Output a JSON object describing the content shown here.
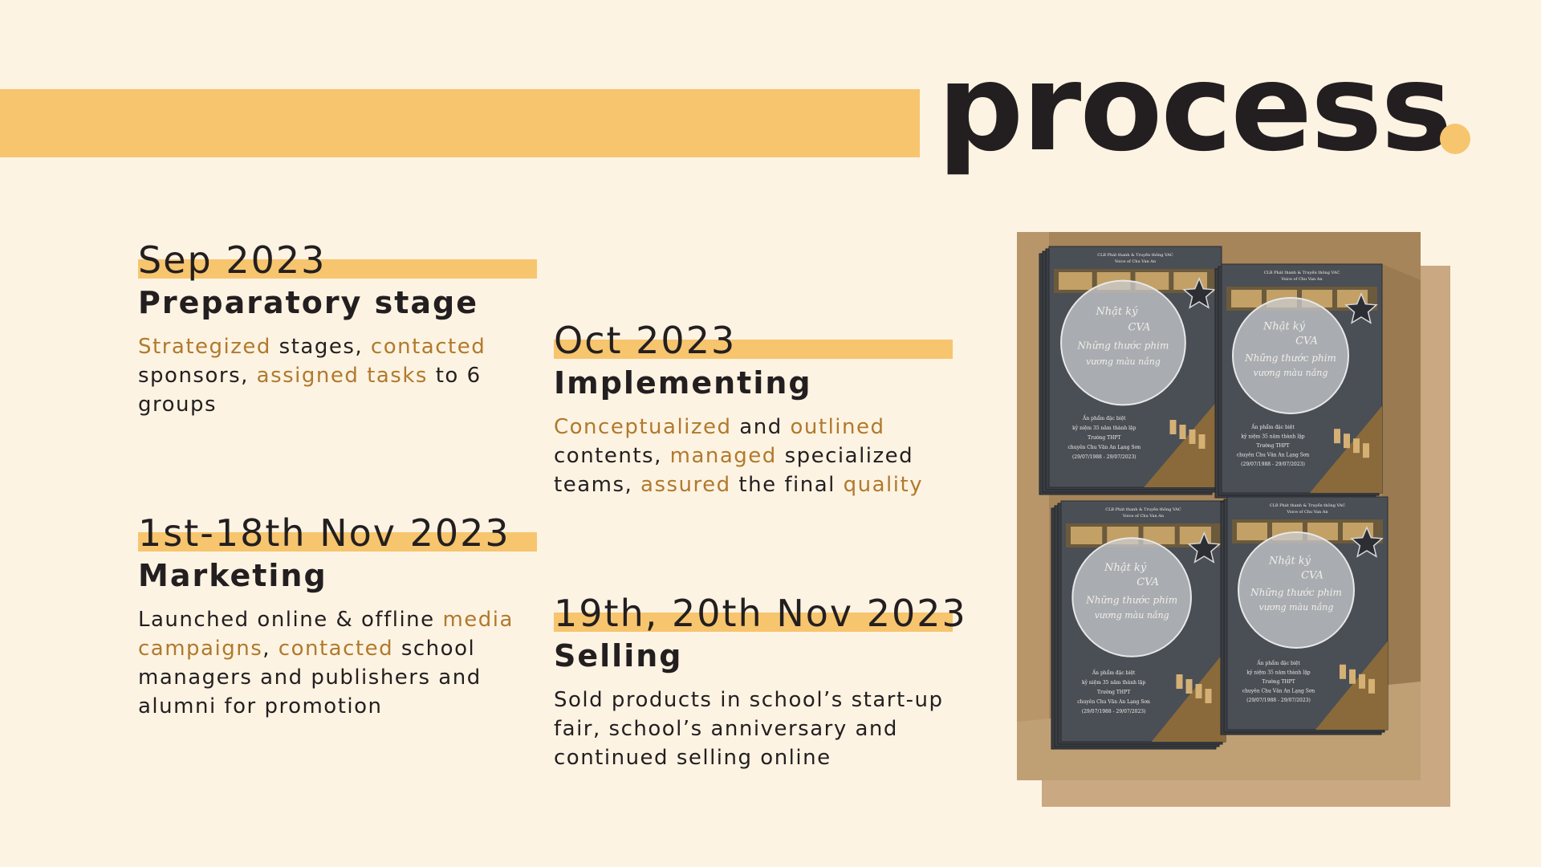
{
  "title": "process",
  "steps": [
    {
      "date": "Sep 2023",
      "heading": "Preparatory stage",
      "description": [
        {
          "text": "Strategized",
          "hl": true
        },
        {
          "text": " stages, ",
          "hl": false
        },
        {
          "text": "contacted",
          "hl": true
        },
        {
          "text": " sponsors, ",
          "hl": false
        },
        {
          "text": "assigned tasks",
          "hl": true
        },
        {
          "text": " to 6 groups",
          "hl": false
        }
      ]
    },
    {
      "date": "Oct 2023",
      "heading": "Implementing",
      "description": [
        {
          "text": "Conceptualized",
          "hl": true
        },
        {
          "text": " and ",
          "hl": false
        },
        {
          "text": "outlined",
          "hl": true
        },
        {
          "text": " contents, ",
          "hl": false
        },
        {
          "text": "managed",
          "hl": true
        },
        {
          "text": " specialized teams, ",
          "hl": false
        },
        {
          "text": "assured",
          "hl": true
        },
        {
          "text": " the final ",
          "hl": false
        },
        {
          "text": "quality",
          "hl": true
        }
      ]
    },
    {
      "date": "1st-18th Nov 2023",
      "heading": "Marketing",
      "description": [
        {
          "text": "Launched online & offline ",
          "hl": false
        },
        {
          "text": "media campaigns",
          "hl": true
        },
        {
          "text": ", ",
          "hl": false
        },
        {
          "text": "contacted",
          "hl": true
        },
        {
          "text": " school managers and publishers and alumni for promotion",
          "hl": false
        }
      ]
    },
    {
      "date": "19th, 20th Nov 2023",
      "heading": "Selling",
      "description": [
        {
          "text": "Sold products in school’s start-up fair, school’s anniversary and continued selling online",
          "hl": false
        }
      ]
    }
  ],
  "photo": {
    "book_cover": {
      "top_line": "CLB Phát thanh & Truyền thông VAC",
      "sub_line": "Voice of Chu Van An",
      "title_1": "Nhật ký",
      "title_2": "CVA",
      "title_3": "Những thước phim",
      "title_4": "vương màu nắng",
      "bottom_1": "Ấn phẩm đặc biệt",
      "bottom_2": "kỷ niệm 35 năm thành lập",
      "bottom_3": "Trường THPT",
      "bottom_4": "chuyên Chu Văn An Lạng Sơn",
      "bottom_5": "(29/07/1988 - 29/07/2023)"
    }
  },
  "colors": {
    "background": "#fdf3e3",
    "accent": "#f7c56e",
    "highlight_text": "#b07a2c",
    "text": "#231f20",
    "photo_shadow": "#c9a882"
  }
}
